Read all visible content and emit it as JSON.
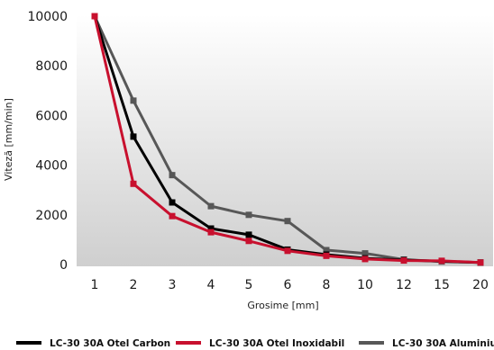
{
  "chart_data": {
    "type": "line",
    "title": "",
    "xlabel": "Grosime [mm]",
    "ylabel": "Viteză [mm/min]",
    "categories": [
      "1",
      "2",
      "3",
      "4",
      "5",
      "6",
      "8",
      "10",
      "12",
      "15",
      "20"
    ],
    "ylim": [
      0,
      10000
    ],
    "yticks": [
      "0",
      "2000",
      "4000",
      "6000",
      "8000",
      "10000"
    ],
    "grid": false,
    "legend_position": "bottom",
    "series": [
      {
        "name": "LC-30 30A Otel Carbon",
        "color": "#000000",
        "values": [
          10000,
          5150,
          2500,
          1450,
          1200,
          600,
          400,
          250,
          180,
          null,
          80
        ]
      },
      {
        "name": "LC-30 30A Otel Inoxidabil",
        "color": "#c8102e",
        "values": [
          10000,
          3250,
          1950,
          1300,
          950,
          550,
          350,
          220,
          160,
          150,
          80
        ]
      },
      {
        "name": "LC-30 30A Aluminiu",
        "color": "#575757",
        "values": [
          10000,
          6600,
          3600,
          2350,
          2000,
          1750,
          580,
          450,
          200,
          120,
          80
        ]
      }
    ],
    "draw_order": [
      2,
      0,
      1
    ]
  },
  "background": {
    "gradient_top": "#ffffff",
    "gradient_bottom": "#cfcfcf"
  }
}
